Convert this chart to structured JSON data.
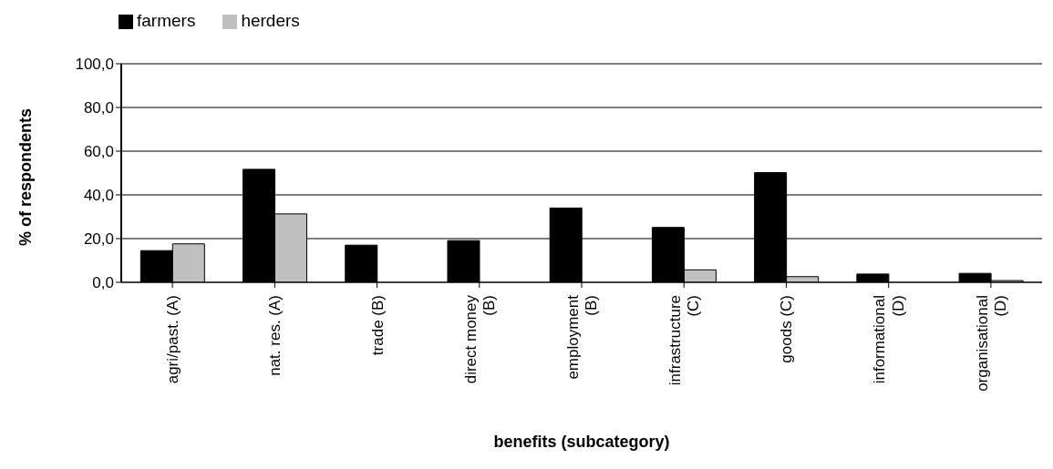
{
  "chart_data": {
    "type": "bar",
    "xlabel": "benefits (subcategory)",
    "ylabel": "% of respondents",
    "categories": [
      "agri/past. (A)",
      "nat. res. (A)",
      "trade (B)",
      "direct money\n(B)",
      "employment\n(B)",
      "infrastructure\n(C)",
      "goods (C)",
      "informational\n(D)",
      "organisational\n(D)"
    ],
    "series": [
      {
        "name": "farmers",
        "color": "#000000",
        "values": [
          14.5,
          51.7,
          17.0,
          19.1,
          34.0,
          25.1,
          50.2,
          3.8,
          4.1
        ]
      },
      {
        "name": "herders",
        "color": "#c0c0c0",
        "values": [
          17.6,
          31.3,
          0,
          0,
          0,
          5.7,
          2.6,
          0,
          0.8
        ]
      }
    ],
    "ylim": [
      0,
      100
    ],
    "yticks": [
      {
        "value": 0,
        "label": "0,0"
      },
      {
        "value": 20,
        "label": "20,0"
      },
      {
        "value": 40,
        "label": "40,0"
      },
      {
        "value": 60,
        "label": "60,0"
      },
      {
        "value": 80,
        "label": "80,0"
      },
      {
        "value": 100,
        "label": "100,0"
      }
    ],
    "grid": "y",
    "legend": "top left"
  }
}
